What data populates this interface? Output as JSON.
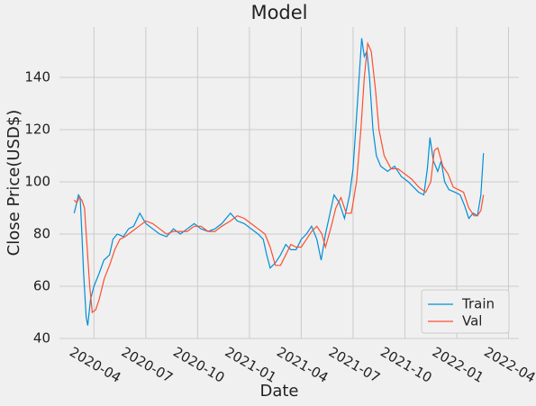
{
  "chart_data": {
    "type": "line",
    "title": "Model",
    "x_label": "Date",
    "y_label": "Close Price(USD$)",
    "series": [
      {
        "name": "Train",
        "color": "#008fd5",
        "x": [
          -1.15,
          -1.0,
          -0.9,
          -0.8,
          -0.7,
          -0.6,
          -0.45,
          -0.36,
          -0.2,
          0,
          0.3,
          0.57,
          0.9,
          1.1,
          1.35,
          1.7,
          2.0,
          2.3,
          2.65,
          3.0,
          3.4,
          3.8,
          4.2,
          4.6,
          5.0,
          5.4,
          5.8,
          6.2,
          6.6,
          7.0,
          7.4,
          7.9,
          8.3,
          8.7,
          9.1,
          9.5,
          9.8,
          10.0,
          10.2,
          10.5,
          10.8,
          11.1,
          11.4,
          11.7,
          12.0,
          12.3,
          12.6,
          12.9,
          13.15,
          13.4,
          13.6,
          13.9,
          14.2,
          14.5,
          14.8,
          15.0,
          15.2,
          15.4,
          15.5,
          15.65,
          15.8,
          15.95,
          16.15,
          16.35,
          16.6,
          17.0,
          17.4,
          17.8,
          18.2,
          18.5,
          18.8,
          19.1,
          19.3,
          19.45,
          19.65,
          19.9,
          20.1,
          20.3,
          20.55,
          20.9,
          21.2,
          21.45,
          21.7,
          21.95,
          22.2,
          22.4,
          22.55
        ],
        "values": [
          88,
          92,
          95,
          94,
          80,
          65,
          48,
          45,
          55,
          60,
          65,
          70,
          72,
          78,
          80,
          79,
          82,
          83,
          88,
          84,
          82,
          80,
          79,
          82,
          80,
          82,
          84,
          82,
          81,
          82,
          84,
          88,
          85,
          84,
          82,
          80,
          78,
          72,
          67,
          69,
          72,
          76,
          74,
          74,
          78,
          80,
          83,
          78,
          70,
          80,
          86,
          95,
          92,
          86,
          95,
          105,
          125,
          145,
          155,
          148,
          150,
          140,
          120,
          110,
          106,
          104,
          106,
          102,
          100,
          98,
          96,
          95,
          105,
          117,
          108,
          104,
          108,
          100,
          97,
          96,
          95,
          91,
          86,
          88,
          87,
          95,
          111
        ]
      },
      {
        "name": "Val",
        "color": "#fc4f30",
        "x": [
          -1.15,
          -1.0,
          -0.85,
          -0.7,
          -0.55,
          -0.4,
          -0.25,
          -0.1,
          0.1,
          0.3,
          0.6,
          0.9,
          1.2,
          1.5,
          1.8,
          2.2,
          2.6,
          3.0,
          3.4,
          3.8,
          4.2,
          4.6,
          5.0,
          5.4,
          5.8,
          6.2,
          6.6,
          7.0,
          7.4,
          7.9,
          8.3,
          8.7,
          9.1,
          9.5,
          9.9,
          10.2,
          10.5,
          10.8,
          11.1,
          11.4,
          11.7,
          12.0,
          12.3,
          12.6,
          12.9,
          13.2,
          13.4,
          13.7,
          14.0,
          14.3,
          14.6,
          14.9,
          15.2,
          15.45,
          15.65,
          15.85,
          16.05,
          16.3,
          16.5,
          16.8,
          17.2,
          17.6,
          18.0,
          18.4,
          18.8,
          19.2,
          19.5,
          19.7,
          19.9,
          20.2,
          20.5,
          20.8,
          21.1,
          21.4,
          21.7,
          22.0,
          22.2,
          22.4,
          22.55
        ],
        "values": [
          93,
          92,
          94,
          93,
          90,
          75,
          60,
          50,
          51,
          55,
          63,
          68,
          74,
          78,
          79,
          81,
          83,
          85,
          84,
          82,
          80,
          81,
          81,
          81,
          83,
          83,
          81,
          81,
          83,
          85,
          87,
          86,
          84,
          82,
          80,
          75,
          68,
          68,
          72,
          76,
          75,
          75,
          78,
          81,
          83,
          80,
          75,
          82,
          90,
          94,
          88,
          88,
          100,
          120,
          140,
          153,
          150,
          135,
          120,
          110,
          105,
          105,
          103,
          101,
          98,
          96,
          100,
          112,
          113,
          106,
          103,
          98,
          97,
          96,
          90,
          87,
          87,
          89,
          95
        ]
      }
    ],
    "xlim": [
      -2,
      24.6
    ],
    "xticks": [
      {
        "value": 0,
        "label": "2020-04"
      },
      {
        "value": 3,
        "label": "2020-07"
      },
      {
        "value": 6,
        "label": "2020-10"
      },
      {
        "value": 9,
        "label": "2021-01"
      },
      {
        "value": 12,
        "label": "2021-04"
      },
      {
        "value": 15,
        "label": "2021-07"
      },
      {
        "value": 18,
        "label": "2021-10"
      },
      {
        "value": 21,
        "label": "2022-01"
      },
      {
        "value": 24,
        "label": "2022-04"
      }
    ],
    "ylim": [
      40,
      159.3
    ],
    "yticks": [
      40,
      60,
      80,
      100,
      120,
      140
    ],
    "grid": true,
    "legend": "lower right"
  }
}
